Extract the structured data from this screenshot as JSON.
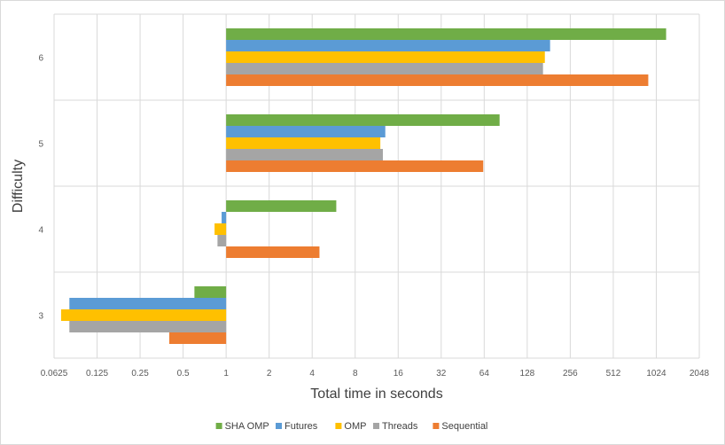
{
  "chart_data": {
    "type": "bar",
    "orientation": "horizontal",
    "xscale": "log2",
    "xlabel": "Total time in seconds",
    "ylabel": "Difficulty",
    "xlim": [
      0.0625,
      2048
    ],
    "xticks": [
      "0.0625",
      "0.125",
      "0.25",
      "0.5",
      "1",
      "2",
      "4",
      "8",
      "16",
      "32",
      "64",
      "128",
      "256",
      "512",
      "1024",
      "2048"
    ],
    "categories": [
      "3",
      "4",
      "5",
      "6"
    ],
    "grid": true,
    "legend": "bottom",
    "series": [
      {
        "name": "SHA OMP",
        "color": "#70ad47",
        "values": [
          0.6,
          5.9,
          82,
          1200
        ]
      },
      {
        "name": "Futures",
        "color": "#5b9bd5",
        "values": [
          0.08,
          0.93,
          13,
          185
        ]
      },
      {
        "name": "OMP",
        "color": "#ffc000",
        "values": [
          0.07,
          0.83,
          12,
          170
        ]
      },
      {
        "name": "Threads",
        "color": "#a5a5a5",
        "values": [
          0.08,
          0.87,
          12.5,
          165
        ]
      },
      {
        "name": "Sequential",
        "color": "#ed7d31",
        "values": [
          0.4,
          4.5,
          63,
          900
        ]
      }
    ]
  }
}
